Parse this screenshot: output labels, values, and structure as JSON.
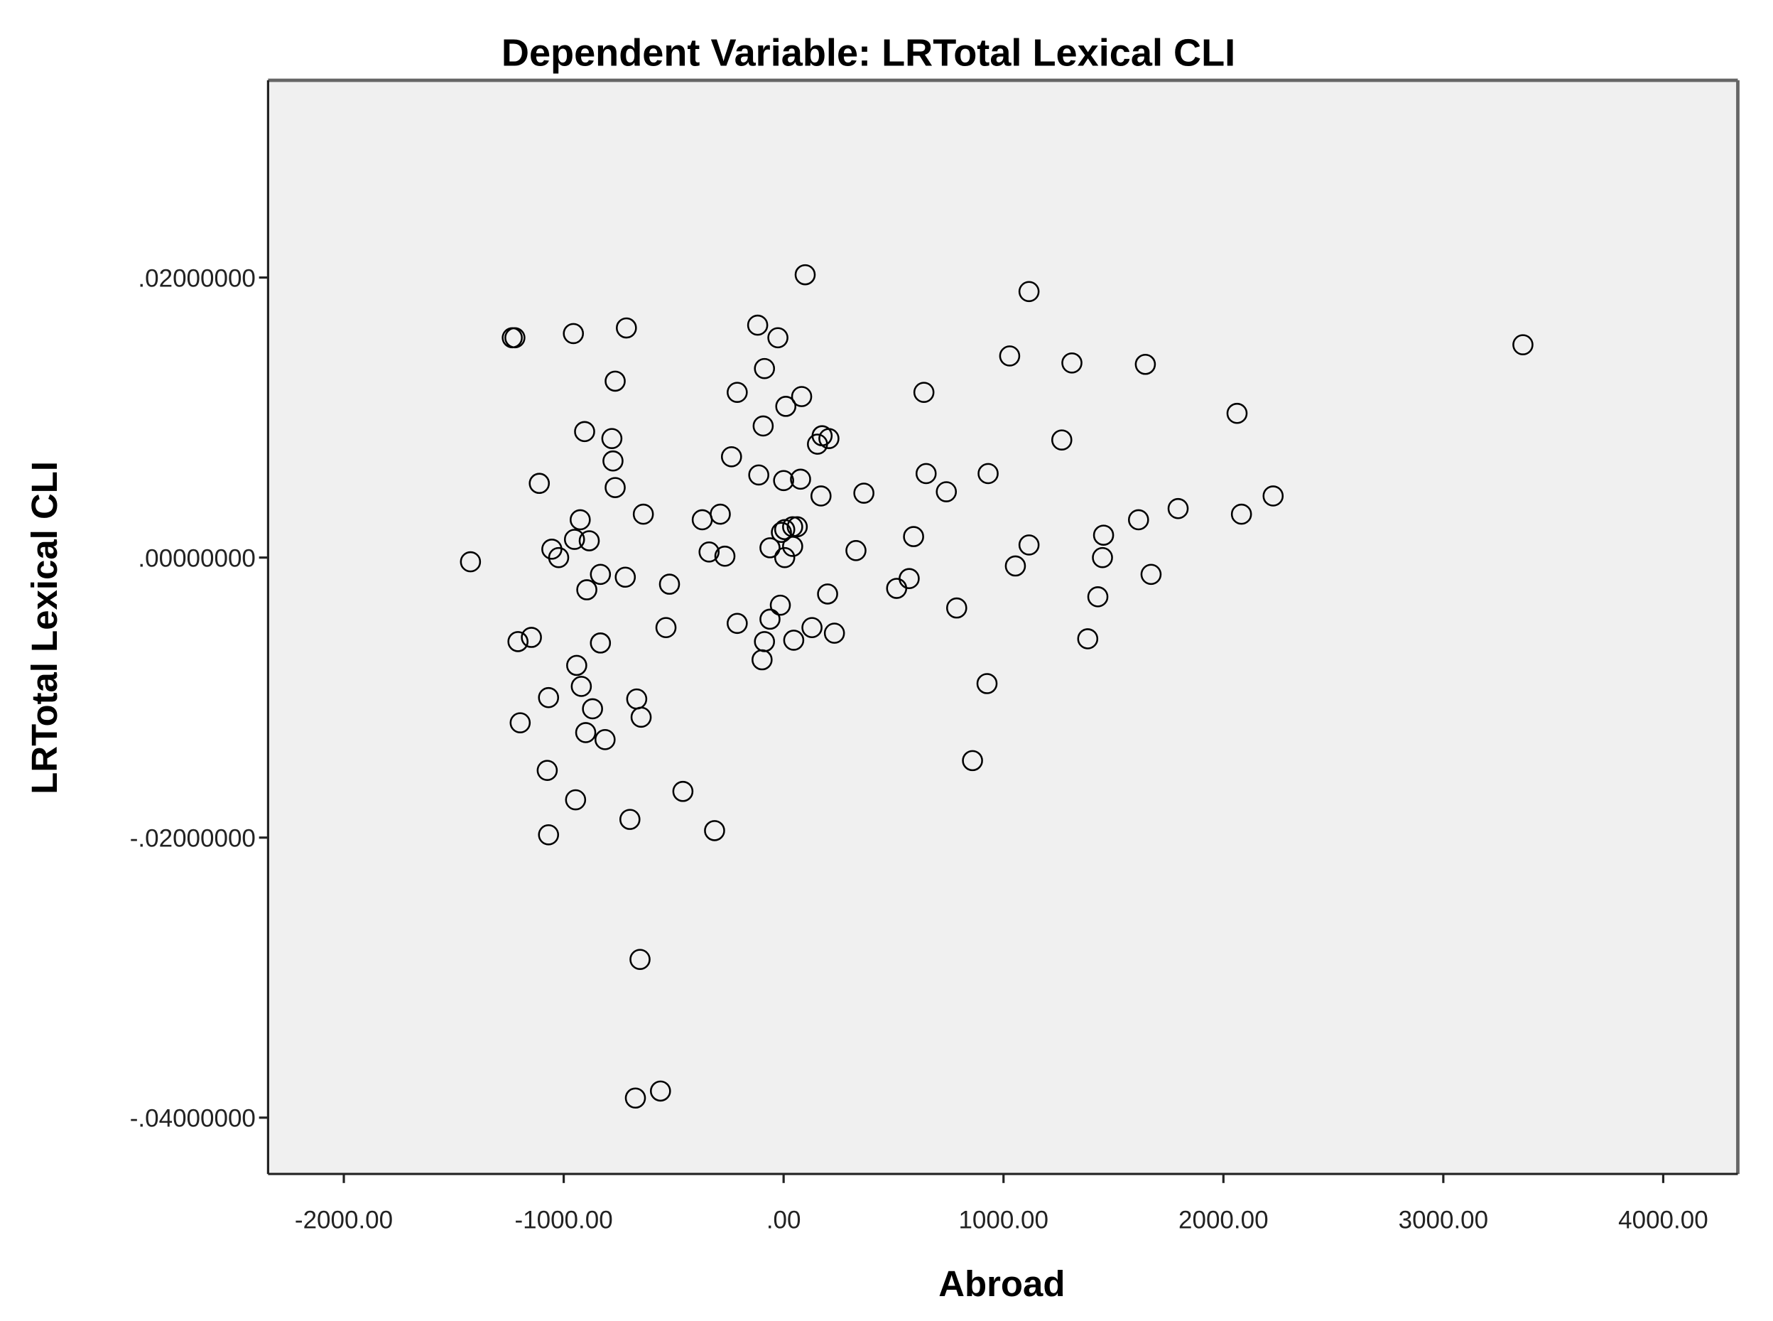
{
  "chart_data": {
    "type": "scatter",
    "title": "Dependent Variable: LRTotal Lexical CLI",
    "xlabel": "Abroad",
    "ylabel": "LRTotal Lexical CLI",
    "xlim": [
      -2350,
      4350
    ],
    "ylim": [
      -0.044,
      0.034
    ],
    "xticks": [
      -2000,
      -1000,
      0,
      1000,
      2000,
      3000,
      4000
    ],
    "xtick_labels": [
      "-2000.00",
      "-1000.00",
      ".00",
      "1000.00",
      "2000.00",
      "3000.00",
      "4000.00"
    ],
    "yticks": [
      0.02,
      0,
      -0.02,
      -0.04
    ],
    "ytick_labels": [
      ".02000000",
      ".00000000",
      "-.02000000",
      "-.04000000"
    ],
    "grid": false,
    "marker": "open-circle",
    "colors": {
      "plot_background": "#f0f0f0",
      "marker": "#000000",
      "frame": "#444444"
    },
    "points": [
      [
        98,
        0.0202
      ],
      [
        1116,
        0.019
      ],
      [
        -1234,
        0.0157
      ],
      [
        -1222,
        0.0157
      ],
      [
        -956,
        0.016
      ],
      [
        -715,
        0.0164
      ],
      [
        -118,
        0.0166
      ],
      [
        -26,
        0.0157
      ],
      [
        1028,
        0.0144
      ],
      [
        1311,
        0.0139
      ],
      [
        1645,
        0.0138
      ],
      [
        3362,
        0.0152
      ],
      [
        -766,
        0.0126
      ],
      [
        -87,
        0.0135
      ],
      [
        -211,
        0.0118
      ],
      [
        82,
        0.0115
      ],
      [
        10,
        0.0108
      ],
      [
        638,
        0.0118
      ],
      [
        2062,
        0.0103
      ],
      [
        -905,
        0.009
      ],
      [
        -781,
        0.0085
      ],
      [
        -93,
        0.0094
      ],
      [
        175,
        0.0087
      ],
      [
        206,
        0.0085
      ],
      [
        154,
        0.0081
      ],
      [
        -776,
        0.0069
      ],
      [
        -237,
        0.0072
      ],
      [
        1265,
        0.0084
      ],
      [
        -1111,
        0.0053
      ],
      [
        -766,
        0.005
      ],
      [
        -113,
        0.0059
      ],
      [
        0,
        0.0055
      ],
      [
        77,
        0.0056
      ],
      [
        170,
        0.0044
      ],
      [
        365,
        0.0046
      ],
      [
        648,
        0.006
      ],
      [
        740,
        0.0047
      ],
      [
        930,
        0.006
      ],
      [
        2226,
        0.0044
      ],
      [
        1794,
        0.0035
      ],
      [
        2082,
        0.0031
      ],
      [
        1614,
        0.0027
      ],
      [
        1455,
        0.0016
      ],
      [
        -638,
        0.0031
      ],
      [
        -925,
        0.0027
      ],
      [
        -951,
        0.0013
      ],
      [
        -884,
        0.0012
      ],
      [
        -370,
        0.0027
      ],
      [
        -288,
        0.0031
      ],
      [
        5,
        0.002
      ],
      [
        41,
        0.0022
      ],
      [
        62,
        0.0022
      ],
      [
        -10,
        0.0018
      ],
      [
        -1054,
        0.0006
      ],
      [
        -1023,
        0.0
      ],
      [
        -1424,
        -0.0003
      ],
      [
        -339,
        0.0004
      ],
      [
        -267,
        0.0001
      ],
      [
        -62,
        0.0007
      ],
      [
        41,
        0.0008
      ],
      [
        5,
        0.0
      ],
      [
        329,
        0.0005
      ],
      [
        591,
        0.0015
      ],
      [
        1116,
        0.0009
      ],
      [
        1054,
        -0.0006
      ],
      [
        1450,
        0.0
      ],
      [
        1671,
        -0.0012
      ],
      [
        -833,
        -0.0012
      ],
      [
        -720,
        -0.0014
      ],
      [
        -895,
        -0.0023
      ],
      [
        -519,
        -0.0019
      ],
      [
        514,
        -0.0022
      ],
      [
        571,
        -0.0015
      ],
      [
        200,
        -0.0026
      ],
      [
        -15,
        -0.0034
      ],
      [
        787,
        -0.0036
      ],
      [
        1429,
        -0.0028
      ],
      [
        -535,
        -0.005
      ],
      [
        -211,
        -0.0047
      ],
      [
        -62,
        -0.0044
      ],
      [
        129,
        -0.005
      ],
      [
        231,
        -0.0054
      ],
      [
        46,
        -0.0059
      ],
      [
        -87,
        -0.006
      ],
      [
        -98,
        -0.0073
      ],
      [
        1383,
        -0.0058
      ],
      [
        -1208,
        -0.006
      ],
      [
        -1147,
        -0.0057
      ],
      [
        -833,
        -0.0061
      ],
      [
        -941,
        -0.0077
      ],
      [
        -920,
        -0.0092
      ],
      [
        925,
        -0.009
      ],
      [
        -1069,
        -0.01
      ],
      [
        -668,
        -0.0101
      ],
      [
        -869,
        -0.0108
      ],
      [
        -648,
        -0.0114
      ],
      [
        -1198,
        -0.0118
      ],
      [
        -900,
        -0.0125
      ],
      [
        -812,
        -0.013
      ],
      [
        859,
        -0.0145
      ],
      [
        -1075,
        -0.0152
      ],
      [
        -458,
        -0.0167
      ],
      [
        -946,
        -0.0173
      ],
      [
        -699,
        -0.0187
      ],
      [
        -314,
        -0.0195
      ],
      [
        -1069,
        -0.0198
      ],
      [
        -653,
        -0.0287
      ],
      [
        -560,
        -0.0381
      ],
      [
        -674,
        -0.0386
      ]
    ]
  }
}
